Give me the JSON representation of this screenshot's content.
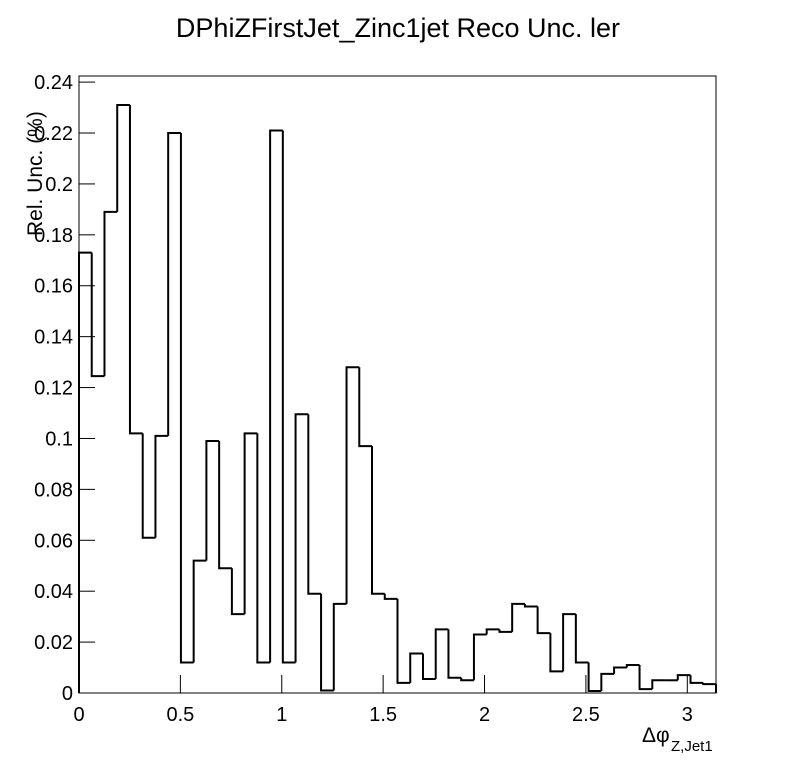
{
  "chart_data": {
    "type": "histogram",
    "title": "DPhiZFirstJet_Zinc1jet Reco Unc. ler",
    "xlabel": {
      "main": "Δφ",
      "sub": "Z,Jet1"
    },
    "ylabel": "Rel. Unc. (%)",
    "color": "#000000",
    "bins": [
      0,
      0.0628,
      0.1257,
      0.1885,
      0.2513,
      0.3142,
      0.377,
      0.4398,
      0.5027,
      0.5655,
      0.6283,
      0.6912,
      0.754,
      0.8168,
      0.8796,
      0.9425,
      1.0053,
      1.0681,
      1.131,
      1.1938,
      1.2566,
      1.3195,
      1.3823,
      1.4451,
      1.508,
      1.5708,
      1.6336,
      1.6965,
      1.7593,
      1.8221,
      1.885,
      1.9478,
      2.0106,
      2.0735,
      2.1363,
      2.1991,
      2.2619,
      2.3248,
      2.3876,
      2.4504,
      2.5133,
      2.5761,
      2.6389,
      2.7018,
      2.7646,
      2.8274,
      2.8903,
      2.9531,
      3.0159,
      3.0788,
      3.1416
    ],
    "values": [
      0.173,
      0.1245,
      0.189,
      0.231,
      0.102,
      0.061,
      0.101,
      0.22,
      0.012,
      0.052,
      0.099,
      0.049,
      0.031,
      0.102,
      0.012,
      0.221,
      0.012,
      0.1095,
      0.039,
      0.001,
      0.035,
      0.128,
      0.097,
      0.039,
      0.037,
      0.004,
      0.0155,
      0.0055,
      0.025,
      0.006,
      0.005,
      0.023,
      0.025,
      0.024,
      0.035,
      0.034,
      0.0235,
      0.0085,
      0.031,
      0.012,
      0.0008,
      0.0075,
      0.01,
      0.011,
      0.0015,
      0.005,
      0.005,
      0.007,
      0.004,
      0.0035
    ],
    "xlim": [
      0,
      3.1416
    ],
    "ylim": [
      0,
      0.2424
    ],
    "xticks": [
      0,
      0.5,
      1,
      1.5,
      2,
      2.5,
      3
    ],
    "yticks": [
      0,
      0.02,
      0.04,
      0.06,
      0.08,
      0.1,
      0.12,
      0.14,
      0.16,
      0.18,
      0.2,
      0.22,
      0.24
    ]
  }
}
